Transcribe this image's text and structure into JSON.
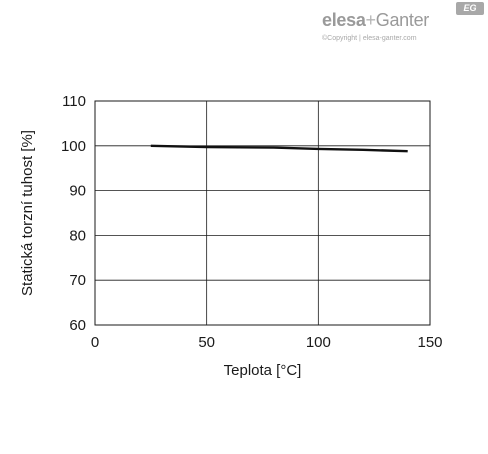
{
  "brand": {
    "elesa": "elesa",
    "plus": "+",
    "ganter": "Ganter",
    "badge": "EG",
    "copyright": "©Copyright | elesa-ganter.com"
  },
  "chart_data": {
    "type": "line",
    "title": "",
    "xlabel": "Teplota [°C]",
    "ylabel": "Statická torzní tuhost [%]",
    "xlim": [
      0,
      150
    ],
    "ylim": [
      60,
      110
    ],
    "xticks": [
      0,
      50,
      100,
      150
    ],
    "yticks": [
      60,
      70,
      80,
      90,
      100,
      110
    ],
    "grid": true,
    "legend": "none",
    "line_color": "#111111",
    "series": [
      {
        "x": [
          25,
          50,
          80,
          100,
          120,
          140
        ],
        "y": [
          100,
          99.7,
          99.6,
          99.3,
          99.1,
          98.8
        ]
      }
    ]
  }
}
